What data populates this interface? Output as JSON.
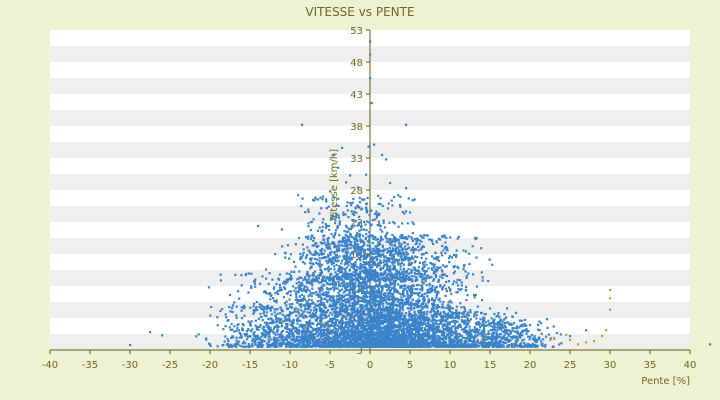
{
  "chart_data": {
    "type": "scatter",
    "title": "VITESSE vs PENTE",
    "xlabel": "Pente [%]",
    "ylabel": "Vitesse [km/h]",
    "xlim": [
      -40,
      40
    ],
    "ylim": [
      3,
      53
    ],
    "x_ticks": [
      -40,
      -35,
      -30,
      -25,
      -20,
      -15,
      -10,
      -5,
      0,
      5,
      10,
      15,
      20,
      25,
      30,
      35,
      40
    ],
    "y_ticks": [
      3,
      8,
      13,
      18,
      23,
      28,
      33,
      38,
      43,
      48,
      53
    ],
    "grid": true,
    "legend": "none",
    "colors": {
      "background": "#edf2d2",
      "band_light": "#ffffff",
      "band_dark": "#efefef",
      "text": "#6b6b1e",
      "axis": "#5c5c18",
      "point": "#3b83c9",
      "point_outlier": "#b3a52e"
    },
    "series": [
      {
        "points": [
          [
            -30,
            3.8
          ],
          [
            -27.5,
            5.8
          ],
          [
            -26,
            5.3
          ],
          [
            -20.5,
            4.8
          ],
          [
            -20,
            3.9
          ],
          [
            -18.5,
            9.4
          ],
          [
            -17.5,
            11.6
          ],
          [
            -16.5,
            12.2
          ],
          [
            -15.5,
            14.9
          ],
          [
            -14,
            22.4
          ],
          [
            -13,
            15.6
          ],
          [
            -12.5,
            11.9
          ],
          [
            -11,
            19.2
          ],
          [
            -10,
            14.2
          ],
          [
            -9.5,
            16.8
          ],
          [
            -9,
            27.2
          ],
          [
            -8.5,
            38.2
          ],
          [
            -7.5,
            16.6
          ],
          [
            -7,
            20.5
          ],
          [
            -6,
            21.5
          ],
          [
            -5.5,
            22.1
          ],
          [
            -5,
            27.8
          ],
          [
            -4.5,
            33.5
          ],
          [
            -4,
            31.5
          ],
          [
            -3.5,
            34.6
          ],
          [
            -3,
            29.2
          ],
          [
            -2.5,
            30.3
          ],
          [
            -2,
            24.6
          ],
          [
            -1.5,
            28.4
          ],
          [
            -1,
            26.5
          ],
          [
            -0.5,
            30.4
          ],
          [
            -0.2,
            34.8
          ],
          [
            0,
            45.5
          ],
          [
            0,
            49.2
          ],
          [
            0,
            51.2
          ],
          [
            0.2,
            41.6
          ],
          [
            0.5,
            35.1
          ],
          [
            1,
            27.1
          ],
          [
            1.5,
            33.5
          ],
          [
            2,
            32.8
          ],
          [
            2.5,
            29.1
          ],
          [
            3,
            26.9
          ],
          [
            3.5,
            27.2
          ],
          [
            4,
            22.8
          ],
          [
            4.5,
            38.2
          ],
          [
            4.5,
            28.3
          ],
          [
            5,
            24.5
          ],
          [
            6,
            19.1
          ],
          [
            7,
            18.2
          ],
          [
            8,
            16.1
          ],
          [
            9,
            14.8
          ],
          [
            10,
            12.3
          ],
          [
            11,
            13.1
          ],
          [
            12,
            12.4
          ],
          [
            13,
            11.6
          ],
          [
            14,
            10.8
          ],
          [
            15,
            9.5
          ],
          [
            16,
            8.4
          ],
          [
            17,
            8.1
          ],
          [
            18,
            7.2
          ],
          [
            19,
            7.6
          ],
          [
            20,
            6.9
          ],
          [
            21,
            6.2
          ],
          [
            22,
            5.1
          ],
          [
            23,
            4.8
          ],
          [
            25,
            5.2
          ],
          [
            27,
            6.1
          ],
          [
            42.5,
            3.9
          ]
        ],
        "outliers": [
          [
            -11,
            7.5
          ],
          [
            -9,
            9.4
          ],
          [
            -8,
            6.8
          ],
          [
            -6,
            7.2
          ],
          [
            -5,
            6.2
          ],
          [
            -3,
            8.4
          ],
          [
            14,
            4.8
          ],
          [
            22.5,
            4.6
          ],
          [
            23,
            4.9
          ],
          [
            24.5,
            5.4
          ],
          [
            25,
            4.6
          ],
          [
            26,
            3.9
          ],
          [
            27,
            4.2
          ],
          [
            28,
            4.4
          ],
          [
            29.5,
            6.1
          ],
          [
            30,
            9.3
          ],
          [
            30,
            11.1
          ],
          [
            30,
            12.4
          ],
          [
            29,
            5.2
          ]
        ],
        "clusters": [
          {
            "x_mean": 1.2,
            "x_sd": 5.2,
            "y_min": 3.5,
            "y_max": 21,
            "count": 3200
          },
          {
            "x_mean": -3,
            "x_sd": 6.5,
            "y_min": 3.5,
            "y_max": 15,
            "count": 1500
          },
          {
            "x_mean": 9,
            "x_sd": 5.5,
            "y_min": 3.5,
            "y_max": 9,
            "count": 900
          },
          {
            "x_mean": -1.5,
            "x_sd": 3.5,
            "y_min": 14,
            "y_max": 27,
            "count": 500
          },
          {
            "x_mean": -12,
            "x_sd": 3.5,
            "y_min": 3.5,
            "y_max": 10,
            "count": 350
          },
          {
            "x_mean": 17,
            "x_sd": 2.5,
            "y_min": 3.5,
            "y_max": 7.5,
            "count": 250
          }
        ]
      }
    ]
  }
}
